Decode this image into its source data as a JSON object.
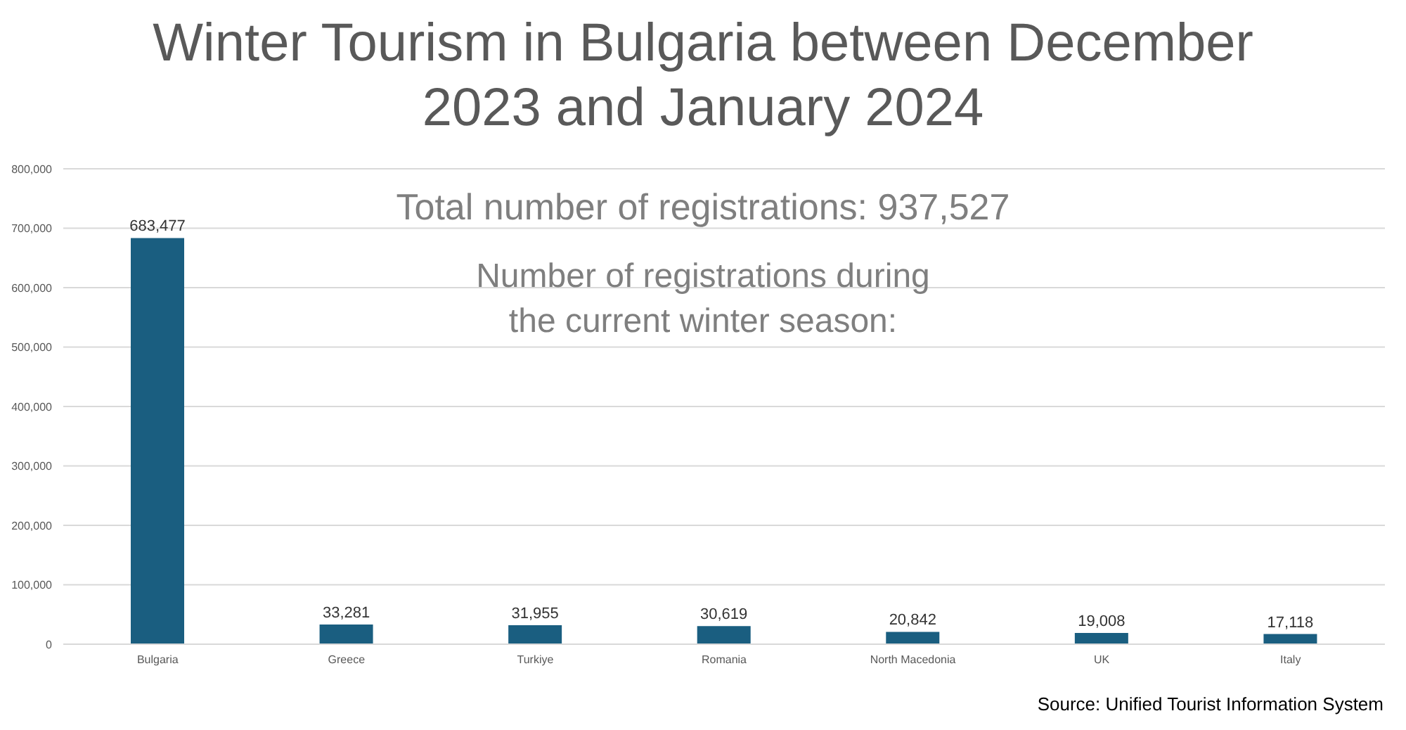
{
  "chart_data": {
    "type": "bar",
    "title": "Winter Tourism in Bulgaria between December 2023 and January 2024",
    "categories": [
      "Bulgaria",
      "Greece",
      "Turkiye",
      "Romania",
      "North Macedonia",
      "UK",
      "Italy"
    ],
    "values": [
      683477,
      33281,
      31955,
      30619,
      20842,
      19008,
      17118
    ],
    "color": "#1a5e80",
    "ylim": [
      0,
      800000
    ],
    "yticks": [
      {
        "value": 0,
        "label": "0"
      },
      {
        "value": 100000,
        "label": "100,000"
      },
      {
        "value": 200000,
        "label": "200,000"
      },
      {
        "value": 300000,
        "label": "300,000"
      },
      {
        "value": 400000,
        "label": "400,000"
      },
      {
        "value": 500000,
        "label": "500,000"
      },
      {
        "value": 600000,
        "label": "600,000"
      },
      {
        "value": 700000,
        "label": "700,000"
      },
      {
        "value": 800000,
        "label": "800,000"
      }
    ],
    "grid": "y",
    "value_labels": [
      "683,477",
      "33,281",
      "31,955",
      "30,619",
      "20,842",
      "19,008",
      "17,118"
    ],
    "annotations": [
      "Total number of registrations: 937,527",
      "Number of registrations during the current winter season:",
      "Source: Unified Tourist Information System"
    ]
  }
}
